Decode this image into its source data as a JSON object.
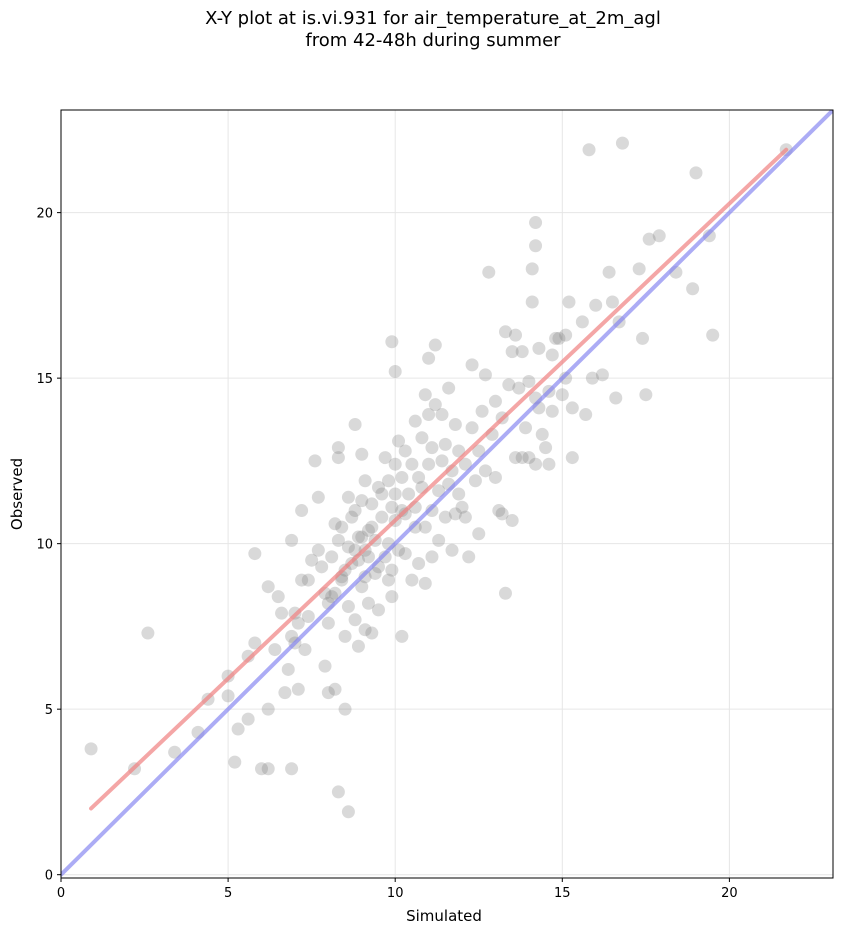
{
  "chart_data": {
    "type": "scatter",
    "title_lines": [
      "X-Y plot at is.vi.931 for air_temperature_at_2m_agl",
      "from 42-48h during summer"
    ],
    "xlabel": "Simulated",
    "ylabel": "Observed",
    "xlim": [
      0,
      23.1
    ],
    "ylim": [
      -0.1,
      23.1
    ],
    "xticks": [
      0,
      5,
      10,
      15,
      20
    ],
    "yticks": [
      0,
      5,
      10,
      15,
      20
    ],
    "grid": true,
    "colors": {
      "points": "#808080",
      "fit_line": "#f08080",
      "identity_line": "#8080f0",
      "grid": "#e6e6e6"
    },
    "fit_line": {
      "x": [
        0.9,
        21.7
      ],
      "y": [
        2.0,
        21.9
      ]
    },
    "identity_line": {
      "x": [
        0,
        23.1
      ],
      "y": [
        0,
        23.1
      ]
    },
    "points": [
      [
        0.9,
        3.8
      ],
      [
        2.2,
        3.2
      ],
      [
        2.6,
        7.3
      ],
      [
        3.4,
        3.7
      ],
      [
        4.1,
        4.3
      ],
      [
        4.4,
        5.3
      ],
      [
        5.0,
        5.4
      ],
      [
        5.0,
        6.0
      ],
      [
        5.2,
        3.4
      ],
      [
        5.3,
        4.4
      ],
      [
        5.6,
        4.7
      ],
      [
        5.6,
        6.6
      ],
      [
        5.8,
        7.0
      ],
      [
        5.8,
        9.7
      ],
      [
        6.0,
        3.2
      ],
      [
        6.2,
        3.2
      ],
      [
        6.2,
        5.0
      ],
      [
        6.2,
        8.7
      ],
      [
        6.4,
        6.8
      ],
      [
        6.5,
        8.4
      ],
      [
        6.6,
        7.9
      ],
      [
        6.7,
        5.5
      ],
      [
        6.8,
        6.2
      ],
      [
        6.9,
        3.2
      ],
      [
        6.9,
        7.2
      ],
      [
        6.9,
        10.1
      ],
      [
        7.0,
        7.9
      ],
      [
        7.0,
        7.0
      ],
      [
        7.1,
        5.6
      ],
      [
        7.1,
        7.6
      ],
      [
        7.2,
        11.0
      ],
      [
        7.2,
        8.9
      ],
      [
        7.3,
        6.8
      ],
      [
        7.4,
        7.8
      ],
      [
        7.4,
        8.9
      ],
      [
        7.5,
        9.5
      ],
      [
        7.6,
        12.5
      ],
      [
        7.7,
        11.4
      ],
      [
        7.7,
        9.8
      ],
      [
        7.8,
        9.3
      ],
      [
        7.9,
        6.3
      ],
      [
        7.9,
        8.5
      ],
      [
        8.0,
        7.6
      ],
      [
        8.0,
        8.2
      ],
      [
        8.0,
        5.5
      ],
      [
        8.1,
        9.6
      ],
      [
        8.1,
        8.4
      ],
      [
        8.2,
        8.5
      ],
      [
        8.2,
        10.6
      ],
      [
        8.2,
        5.6
      ],
      [
        8.3,
        2.5
      ],
      [
        8.3,
        10.1
      ],
      [
        8.3,
        12.6
      ],
      [
        8.3,
        12.9
      ],
      [
        8.4,
        8.9
      ],
      [
        8.4,
        9.0
      ],
      [
        8.4,
        10.5
      ],
      [
        8.5,
        9.2
      ],
      [
        8.5,
        7.2
      ],
      [
        8.5,
        5.0
      ],
      [
        8.6,
        1.9
      ],
      [
        8.6,
        8.1
      ],
      [
        8.6,
        9.9
      ],
      [
        8.6,
        11.4
      ],
      [
        8.7,
        9.4
      ],
      [
        8.7,
        10.8
      ],
      [
        8.8,
        7.7
      ],
      [
        8.8,
        9.8
      ],
      [
        8.8,
        11.0
      ],
      [
        8.8,
        13.6
      ],
      [
        8.9,
        6.9
      ],
      [
        8.9,
        9.5
      ],
      [
        8.9,
        10.2
      ],
      [
        9.0,
        8.7
      ],
      [
        9.0,
        10.2
      ],
      [
        9.0,
        11.3
      ],
      [
        9.0,
        12.7
      ],
      [
        9.1,
        7.4
      ],
      [
        9.1,
        9.0
      ],
      [
        9.1,
        9.8
      ],
      [
        9.1,
        11.9
      ],
      [
        9.2,
        8.2
      ],
      [
        9.2,
        9.6
      ],
      [
        9.2,
        10.4
      ],
      [
        9.3,
        10.5
      ],
      [
        9.3,
        7.3
      ],
      [
        9.3,
        11.2
      ],
      [
        9.4,
        9.1
      ],
      [
        9.4,
        10.1
      ],
      [
        9.5,
        8.0
      ],
      [
        9.5,
        9.3
      ],
      [
        9.5,
        11.7
      ],
      [
        9.6,
        10.8
      ],
      [
        9.6,
        11.5
      ],
      [
        9.7,
        9.6
      ],
      [
        9.7,
        12.6
      ],
      [
        9.8,
        8.9
      ],
      [
        9.8,
        10.0
      ],
      [
        9.8,
        11.9
      ],
      [
        9.9,
        8.4
      ],
      [
        9.9,
        9.2
      ],
      [
        9.9,
        11.1
      ],
      [
        9.9,
        16.1
      ],
      [
        10.0,
        10.7
      ],
      [
        10.0,
        11.5
      ],
      [
        10.0,
        12.4
      ],
      [
        10.0,
        15.2
      ],
      [
        10.1,
        9.8
      ],
      [
        10.1,
        13.1
      ],
      [
        10.2,
        7.2
      ],
      [
        10.2,
        11.0
      ],
      [
        10.2,
        12.0
      ],
      [
        10.3,
        9.7
      ],
      [
        10.3,
        10.9
      ],
      [
        10.3,
        12.8
      ],
      [
        10.4,
        11.5
      ],
      [
        10.5,
        8.9
      ],
      [
        10.5,
        12.4
      ],
      [
        10.6,
        10.5
      ],
      [
        10.6,
        11.1
      ],
      [
        10.6,
        13.7
      ],
      [
        10.7,
        9.4
      ],
      [
        10.7,
        12.0
      ],
      [
        10.8,
        11.7
      ],
      [
        10.8,
        13.2
      ],
      [
        10.9,
        10.5
      ],
      [
        10.9,
        8.8
      ],
      [
        10.9,
        14.5
      ],
      [
        11.0,
        12.4
      ],
      [
        11.0,
        13.9
      ],
      [
        11.0,
        15.6
      ],
      [
        11.1,
        9.6
      ],
      [
        11.1,
        11.0
      ],
      [
        11.1,
        12.9
      ],
      [
        11.2,
        14.2
      ],
      [
        11.2,
        16.0
      ],
      [
        11.3,
        10.1
      ],
      [
        11.3,
        11.6
      ],
      [
        11.4,
        12.5
      ],
      [
        11.4,
        13.9
      ],
      [
        11.5,
        10.8
      ],
      [
        11.5,
        13.0
      ],
      [
        11.6,
        11.8
      ],
      [
        11.6,
        14.7
      ],
      [
        11.7,
        9.8
      ],
      [
        11.7,
        12.2
      ],
      [
        11.8,
        10.9
      ],
      [
        11.8,
        13.6
      ],
      [
        11.9,
        11.5
      ],
      [
        11.9,
        12.8
      ],
      [
        12.0,
        11.1
      ],
      [
        12.1,
        12.4
      ],
      [
        12.1,
        10.8
      ],
      [
        12.2,
        9.6
      ],
      [
        12.3,
        13.5
      ],
      [
        12.3,
        15.4
      ],
      [
        12.4,
        11.9
      ],
      [
        12.5,
        10.3
      ],
      [
        12.5,
        12.8
      ],
      [
        12.6,
        14.0
      ],
      [
        12.7,
        12.2
      ],
      [
        12.7,
        15.1
      ],
      [
        12.8,
        18.2
      ],
      [
        12.9,
        13.3
      ],
      [
        13.0,
        12.0
      ],
      [
        13.0,
        14.3
      ],
      [
        13.1,
        11.0
      ],
      [
        13.2,
        13.8
      ],
      [
        13.2,
        10.9
      ],
      [
        13.3,
        8.5
      ],
      [
        13.3,
        16.4
      ],
      [
        13.4,
        14.8
      ],
      [
        13.5,
        10.7
      ],
      [
        13.5,
        15.8
      ],
      [
        13.6,
        12.6
      ],
      [
        13.6,
        16.3
      ],
      [
        13.7,
        14.7
      ],
      [
        13.8,
        12.6
      ],
      [
        13.8,
        15.8
      ],
      [
        13.9,
        13.5
      ],
      [
        14.0,
        14.9
      ],
      [
        14.0,
        12.6
      ],
      [
        14.1,
        17.3
      ],
      [
        14.1,
        18.3
      ],
      [
        14.2,
        12.4
      ],
      [
        14.2,
        14.4
      ],
      [
        14.2,
        19.0
      ],
      [
        14.2,
        19.7
      ],
      [
        14.3,
        14.1
      ],
      [
        14.3,
        15.9
      ],
      [
        14.4,
        13.3
      ],
      [
        14.5,
        12.9
      ],
      [
        14.6,
        14.6
      ],
      [
        14.6,
        12.4
      ],
      [
        14.7,
        15.7
      ],
      [
        14.7,
        14.0
      ],
      [
        14.8,
        16.2
      ],
      [
        14.9,
        16.2
      ],
      [
        15.0,
        14.5
      ],
      [
        15.1,
        15.0
      ],
      [
        15.1,
        16.3
      ],
      [
        15.2,
        17.3
      ],
      [
        15.3,
        12.6
      ],
      [
        15.3,
        14.1
      ],
      [
        15.6,
        16.7
      ],
      [
        15.7,
        13.9
      ],
      [
        15.8,
        21.9
      ],
      [
        15.9,
        15.0
      ],
      [
        16.0,
        17.2
      ],
      [
        16.2,
        15.1
      ],
      [
        16.4,
        18.2
      ],
      [
        16.5,
        17.3
      ],
      [
        16.6,
        14.4
      ],
      [
        16.7,
        16.7
      ],
      [
        16.8,
        22.1
      ],
      [
        17.3,
        18.3
      ],
      [
        17.4,
        16.2
      ],
      [
        17.5,
        14.5
      ],
      [
        17.6,
        19.2
      ],
      [
        17.9,
        19.3
      ],
      [
        18.4,
        18.2
      ],
      [
        18.9,
        17.7
      ],
      [
        19.0,
        21.2
      ],
      [
        19.4,
        19.3
      ],
      [
        19.5,
        16.3
      ],
      [
        21.7,
        21.9
      ]
    ]
  }
}
